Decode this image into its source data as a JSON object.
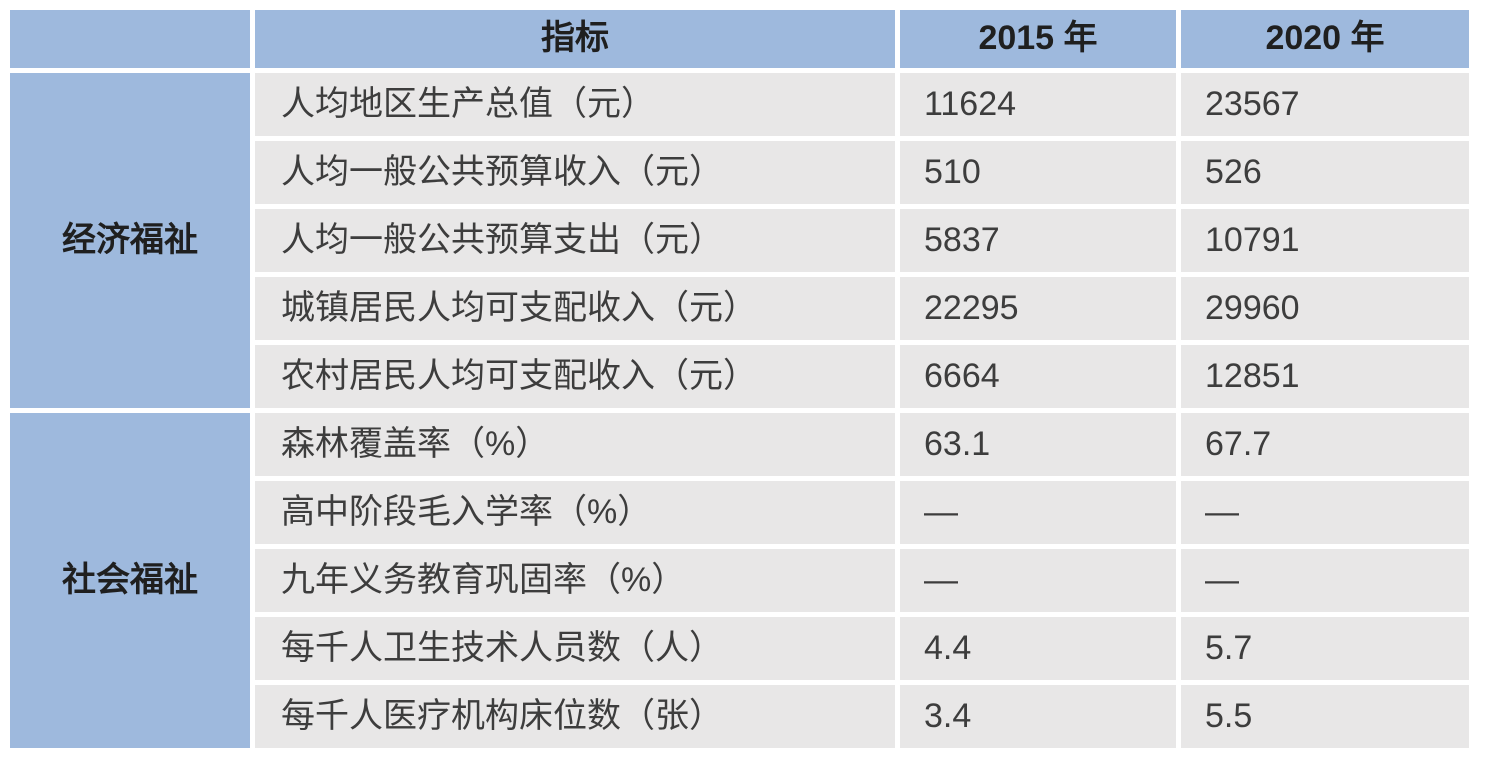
{
  "colors": {
    "header_bg": "#9EB9DD",
    "row_bg": "#E8E7E7",
    "grid": "#FFFFFF",
    "heading_text": "#1F1F1F",
    "body_text": "#3D3D3D"
  },
  "table": {
    "header": {
      "group": "",
      "indicator": "指标",
      "y2015": "2015 年",
      "y2020": "2020 年"
    },
    "groups": [
      {
        "name": "经济福祉",
        "rows": [
          {
            "indicator": "人均地区生产总值（元）",
            "v2015": "11624",
            "v2020": "23567"
          },
          {
            "indicator": "人均一般公共预算收入（元）",
            "v2015": "510",
            "v2020": "526"
          },
          {
            "indicator": "人均一般公共预算支出（元）",
            "v2015": "5837",
            "v2020": "10791"
          },
          {
            "indicator": "城镇居民人均可支配收入（元）",
            "v2015": "22295",
            "v2020": "29960"
          },
          {
            "indicator": "农村居民人均可支配收入（元）",
            "v2015": "6664",
            "v2020": "12851"
          }
        ]
      },
      {
        "name": "社会福祉",
        "rows": [
          {
            "indicator": "森林覆盖率（%）",
            "v2015": "63.1",
            "v2020": "67.7"
          },
          {
            "indicator": "高中阶段毛入学率（%）",
            "v2015": "—",
            "v2020": "—"
          },
          {
            "indicator": "九年义务教育巩固率（%）",
            "v2015": "—",
            "v2020": "—"
          },
          {
            "indicator": "每千人卫生技术人员数（人）",
            "v2015": "4.4",
            "v2020": "5.7"
          },
          {
            "indicator": "每千人医疗机构床位数（张）",
            "v2015": "3.4",
            "v2020": "5.5"
          }
        ]
      }
    ]
  },
  "chart_data": {
    "type": "table",
    "title": "",
    "columns": [
      "",
      "指标",
      "2015 年",
      "2020 年"
    ],
    "rows": [
      [
        "经济福祉",
        "人均地区生产总值（元）",
        "11624",
        "23567"
      ],
      [
        "经济福祉",
        "人均一般公共预算收入（元）",
        "510",
        "526"
      ],
      [
        "经济福祉",
        "人均一般公共预算支出（元）",
        "5837",
        "10791"
      ],
      [
        "经济福祉",
        "城镇居民人均可支配收入（元）",
        "22295",
        "29960"
      ],
      [
        "经济福祉",
        "农村居民人均可支配收入（元）",
        "6664",
        "12851"
      ],
      [
        "社会福祉",
        "森林覆盖率（%）",
        "63.1",
        "67.7"
      ],
      [
        "社会福祉",
        "高中阶段毛入学率（%）",
        "—",
        "—"
      ],
      [
        "社会福祉",
        "九年义务教育巩固率（%）",
        "—",
        "—"
      ],
      [
        "社会福祉",
        "每千人卫生技术人员数（人）",
        "4.4",
        "5.7"
      ],
      [
        "社会福祉",
        "每千人医疗机构床位数（张）",
        "3.4",
        "5.5"
      ]
    ]
  }
}
